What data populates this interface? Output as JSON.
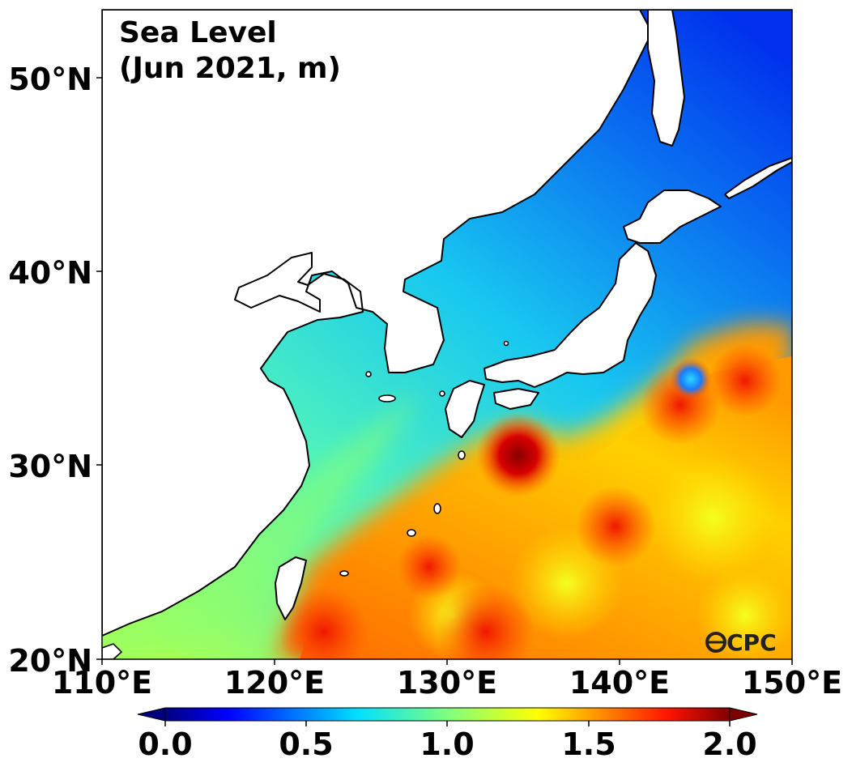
{
  "map": {
    "title_line1": "Sea Level",
    "title_line2": "(Jun 2021, m)",
    "lon_ticks": [
      "110°E",
      "120°E",
      "130°E",
      "140°E",
      "150°E"
    ],
    "lat_ticks": [
      "50°N",
      "40°N",
      "30°N",
      "20°N"
    ],
    "extent": {
      "lon": [
        110,
        150
      ],
      "lat": [
        20,
        53.5
      ]
    },
    "logo_text": "CPC",
    "logo_icon": "ocpc-logo-icon"
  },
  "colorbar": {
    "tick_labels": [
      "0.0",
      "0.5",
      "1.0",
      "1.5",
      "2.0"
    ],
    "range": [
      0.0,
      2.0
    ],
    "colormap": "jet",
    "extend": "both"
  }
}
